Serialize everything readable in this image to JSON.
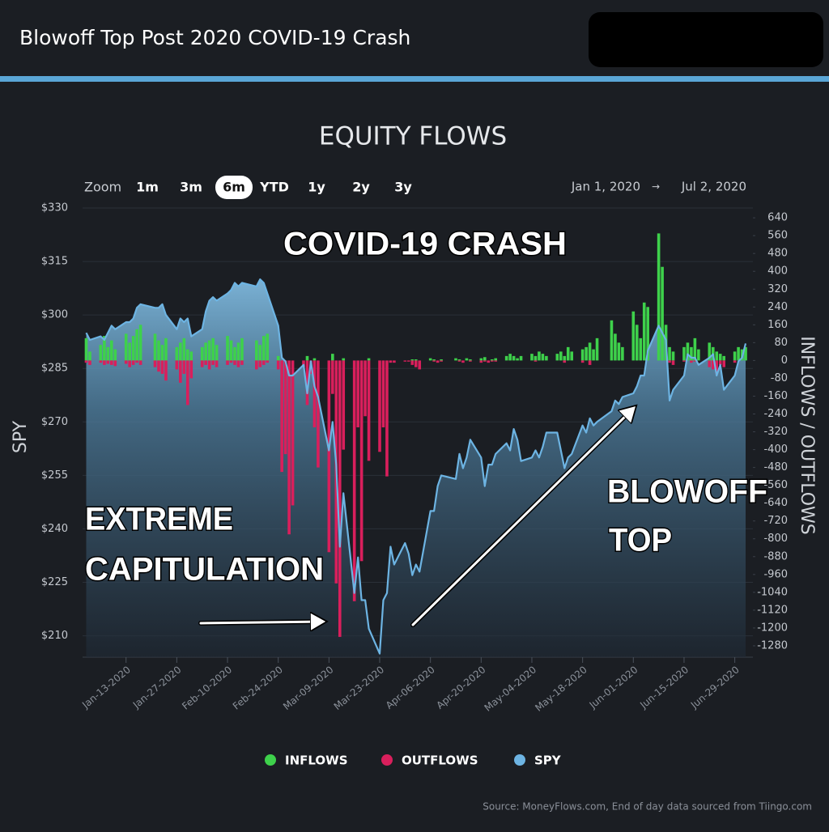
{
  "header": {
    "title": "Blowoff Top Post 2020 COVID-19 Crash"
  },
  "controls": {
    "zoom_label": "Zoom",
    "options": [
      "1m",
      "3m",
      "6m",
      "YTD",
      "1y",
      "2y",
      "3y"
    ],
    "active_index": 2,
    "date_from": "Jan 1, 2020",
    "date_arrow": "→",
    "date_to": "Jul 2, 2020"
  },
  "chart_data": {
    "type": "bar_line_combo",
    "title": "EQUITY FLOWS",
    "y_label": "SPY",
    "y2_label": "INFLOWS / OUTFLOWS",
    "source": "Source: MoneyFlows.com, End of day data sourced from Tiingo.com",
    "annotations": [
      [
        "COVID-19 CRASH"
      ],
      [
        "EXTREME",
        "CAPITULATION"
      ],
      [
        "BLOWOFF",
        "TOP"
      ]
    ],
    "x": [
      "2020-01-02",
      "2020-01-03",
      "2020-01-06",
      "2020-01-07",
      "2020-01-08",
      "2020-01-09",
      "2020-01-10",
      "2020-01-13",
      "2020-01-14",
      "2020-01-15",
      "2020-01-16",
      "2020-01-17",
      "2020-01-21",
      "2020-01-22",
      "2020-01-23",
      "2020-01-24",
      "2020-01-27",
      "2020-01-28",
      "2020-01-29",
      "2020-01-30",
      "2020-01-31",
      "2020-02-03",
      "2020-02-04",
      "2020-02-05",
      "2020-02-06",
      "2020-02-07",
      "2020-02-10",
      "2020-02-11",
      "2020-02-12",
      "2020-02-13",
      "2020-02-14",
      "2020-02-18",
      "2020-02-19",
      "2020-02-20",
      "2020-02-21",
      "2020-02-24",
      "2020-02-25",
      "2020-02-26",
      "2020-02-27",
      "2020-02-28",
      "2020-03-02",
      "2020-03-03",
      "2020-03-04",
      "2020-03-05",
      "2020-03-06",
      "2020-03-09",
      "2020-03-10",
      "2020-03-11",
      "2020-03-12",
      "2020-03-13",
      "2020-03-16",
      "2020-03-17",
      "2020-03-18",
      "2020-03-19",
      "2020-03-20",
      "2020-03-23",
      "2020-03-24",
      "2020-03-25",
      "2020-03-26",
      "2020-03-27",
      "2020-03-30",
      "2020-03-31",
      "2020-04-01",
      "2020-04-02",
      "2020-04-03",
      "2020-04-06",
      "2020-04-07",
      "2020-04-08",
      "2020-04-09",
      "2020-04-13",
      "2020-04-14",
      "2020-04-15",
      "2020-04-16",
      "2020-04-17",
      "2020-04-20",
      "2020-04-21",
      "2020-04-22",
      "2020-04-23",
      "2020-04-24",
      "2020-04-27",
      "2020-04-28",
      "2020-04-29",
      "2020-04-30",
      "2020-05-01",
      "2020-05-04",
      "2020-05-05",
      "2020-05-06",
      "2020-05-07",
      "2020-05-08",
      "2020-05-11",
      "2020-05-12",
      "2020-05-13",
      "2020-05-14",
      "2020-05-15",
      "2020-05-18",
      "2020-05-19",
      "2020-05-20",
      "2020-05-21",
      "2020-05-22",
      "2020-05-26",
      "2020-05-27",
      "2020-05-28",
      "2020-05-29",
      "2020-06-01",
      "2020-06-02",
      "2020-06-03",
      "2020-06-04",
      "2020-06-05",
      "2020-06-08",
      "2020-06-09",
      "2020-06-10",
      "2020-06-11",
      "2020-06-12",
      "2020-06-15",
      "2020-06-16",
      "2020-06-17",
      "2020-06-18",
      "2020-06-19",
      "2020-06-22",
      "2020-06-23",
      "2020-06-24",
      "2020-06-25",
      "2020-06-26",
      "2020-06-29",
      "2020-06-30",
      "2020-07-01",
      "2020-07-02"
    ],
    "series": [
      {
        "name": "INFLOWS",
        "kind": "bar",
        "axis": "y2",
        "color": "#3ed14b",
        "values": [
          100,
          40,
          70,
          110,
          60,
          90,
          50,
          120,
          80,
          110,
          140,
          160,
          120,
          90,
          70,
          100,
          60,
          80,
          100,
          50,
          40,
          60,
          80,
          90,
          100,
          70,
          110,
          90,
          60,
          80,
          100,
          90,
          70,
          110,
          120,
          20,
          0,
          0,
          0,
          0,
          0,
          20,
          0,
          10,
          0,
          0,
          30,
          0,
          0,
          10,
          0,
          0,
          0,
          0,
          10,
          0,
          0,
          0,
          0,
          0,
          0,
          0,
          5,
          5,
          0,
          10,
          5,
          0,
          5,
          10,
          5,
          0,
          10,
          5,
          10,
          15,
          0,
          5,
          10,
          20,
          30,
          20,
          10,
          20,
          30,
          20,
          40,
          30,
          20,
          30,
          40,
          20,
          60,
          40,
          50,
          60,
          80,
          50,
          100,
          180,
          120,
          80,
          60,
          220,
          160,
          100,
          260,
          240,
          570,
          420,
          160,
          60,
          40,
          60,
          80,
          60,
          100,
          50,
          80,
          60,
          40,
          30,
          20,
          40,
          60,
          50,
          60
        ]
      },
      {
        "name": "OUTFLOWS",
        "kind": "bar",
        "axis": "y2",
        "color": "#d91f5c",
        "values": [
          -10,
          -20,
          -10,
          -20,
          -15,
          -20,
          -25,
          -15,
          -30,
          -20,
          -10,
          -20,
          -30,
          -50,
          -60,
          -90,
          -40,
          -100,
          -60,
          -200,
          -80,
          -30,
          -20,
          -40,
          -20,
          -30,
          -20,
          -10,
          -20,
          -30,
          -20,
          -40,
          -30,
          -20,
          -10,
          -40,
          -500,
          -420,
          -780,
          -650,
          -30,
          -200,
          -60,
          -300,
          -480,
          -860,
          -150,
          -1000,
          -1240,
          -400,
          -1080,
          -300,
          -900,
          -250,
          -450,
          -410,
          -300,
          -520,
          -10,
          -10,
          -5,
          -5,
          -20,
          -30,
          -40,
          0,
          -5,
          -10,
          -5,
          0,
          -5,
          -10,
          0,
          -5,
          -10,
          -5,
          -10,
          -5,
          -5,
          0,
          0,
          0,
          0,
          0,
          0,
          -5,
          0,
          0,
          0,
          0,
          0,
          -10,
          0,
          0,
          -10,
          0,
          -20,
          0,
          0,
          0,
          0,
          0,
          0,
          0,
          0,
          0,
          0,
          0,
          0,
          0,
          0,
          -10,
          -20,
          -5,
          0,
          -10,
          -5,
          0,
          -30,
          -40,
          -60,
          -20,
          -30,
          -10,
          0,
          0,
          0
        ]
      },
      {
        "name": "SPY",
        "kind": "area",
        "axis": "y",
        "color": "#6db4e3",
        "values": [
          295,
          293,
          294,
          293,
          295,
          297,
          296,
          298,
          298,
          299,
          302,
          303,
          302,
          302,
          303,
          300,
          296,
          299,
          298,
          299,
          294,
          296,
          301,
          304,
          305,
          304,
          306,
          307,
          309,
          308,
          309,
          308,
          310,
          309,
          306,
          297,
          288,
          287,
          283,
          283,
          286,
          278,
          287,
          280,
          277,
          262,
          270,
          258,
          235,
          250,
          222,
          232,
          220,
          220,
          212,
          205,
          220,
          222,
          235,
          230,
          236,
          233,
          227,
          230,
          228,
          245,
          245,
          252,
          255,
          254,
          261,
          257,
          260,
          265,
          260,
          252,
          258,
          258,
          261,
          264,
          262,
          268,
          265,
          259,
          260,
          262,
          260,
          263,
          267,
          267,
          262,
          257,
          260,
          261,
          269,
          267,
          271,
          269,
          270,
          273,
          276,
          275,
          277,
          278,
          280,
          283,
          283,
          290,
          297,
          295,
          293,
          276,
          279,
          283,
          289,
          288,
          288,
          286,
          288,
          289,
          283,
          286,
          279,
          283,
          287,
          288,
          292
        ]
      }
    ],
    "xlim": [
      "2020-01-01",
      "2020-07-04"
    ],
    "xticks": [
      {
        "value": "2020-01-13",
        "label": "Jan-13-2020"
      },
      {
        "value": "2020-01-27",
        "label": "Jan-27-2020"
      },
      {
        "value": "2020-02-10",
        "label": "Feb-10-2020"
      },
      {
        "value": "2020-02-24",
        "label": "Feb-24-2020"
      },
      {
        "value": "2020-03-09",
        "label": "Mar-09-2020"
      },
      {
        "value": "2020-03-23",
        "label": "Mar-23-2020"
      },
      {
        "value": "2020-04-06",
        "label": "Apr-06-2020"
      },
      {
        "value": "2020-04-20",
        "label": "Apr-20-2020"
      },
      {
        "value": "2020-05-04",
        "label": "May-04-2020"
      },
      {
        "value": "2020-05-18",
        "label": "May-18-2020"
      },
      {
        "value": "2020-06-01",
        "label": "Jun-01-2020"
      },
      {
        "value": "2020-06-15",
        "label": "Jun-15-2020"
      },
      {
        "value": "2020-06-29",
        "label": "Jun-29-2020"
      }
    ],
    "ylim": [
      204,
      330
    ],
    "yticks": [
      {
        "value": 210,
        "label": "$210"
      },
      {
        "value": 225,
        "label": "$225"
      },
      {
        "value": 240,
        "label": "$240"
      },
      {
        "value": 255,
        "label": "$255"
      },
      {
        "value": 270,
        "label": "$270"
      },
      {
        "value": 285,
        "label": "$285"
      },
      {
        "value": 300,
        "label": "$300"
      },
      {
        "value": 315,
        "label": "$315"
      },
      {
        "value": 330,
        "label": "$330"
      }
    ],
    "y2lim": [
      -1331,
      684
    ],
    "y2ticks": [
      640,
      560,
      480,
      400,
      320,
      240,
      160,
      80,
      0,
      -80,
      -160,
      -240,
      -320,
      -400,
      -480,
      -560,
      -640,
      -720,
      -800,
      -880,
      -960,
      -1040,
      -1120,
      -1200,
      -1280
    ],
    "grid": true,
    "legend": "bottom"
  }
}
